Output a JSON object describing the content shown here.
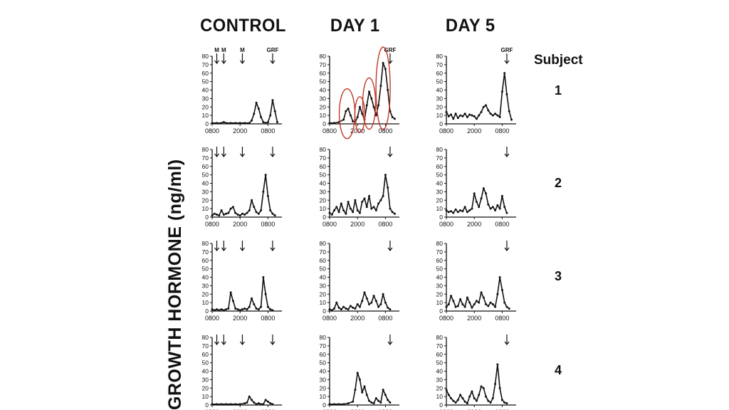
{
  "columns": [
    "CONTROL",
    "DAY 1",
    "DAY 5"
  ],
  "subject_header": "Subject",
  "subjects": [
    "1",
    "2",
    "3",
    "4"
  ],
  "ylabel": "GROWTH HORMONE (ng/ml)",
  "chart_data": {
    "type": "line",
    "title": "",
    "ylabel": "GROWTH HORMONE (ng/ml)",
    "ylim": [
      0,
      80
    ],
    "yticks": [
      0,
      10,
      20,
      30,
      40,
      50,
      60,
      70,
      80
    ],
    "xticks": [
      "0800",
      "2000",
      "0800"
    ],
    "x_unit": "hours from 0800",
    "xlim": [
      0,
      30
    ],
    "arrow_labels": {
      "control": [
        "M",
        "M",
        "M",
        "GRF"
      ],
      "day1": [
        "GRF"
      ],
      "day5": [
        "GRF"
      ]
    },
    "panels": [
      {
        "subject": "1",
        "column": "CONTROL",
        "x": [
          0,
          2,
          4,
          5,
          6,
          8,
          10,
          12,
          14,
          16,
          17,
          18,
          19,
          20,
          21,
          22,
          23,
          24,
          25,
          26,
          27,
          28
        ],
        "y": [
          1,
          1,
          1,
          2,
          1,
          1,
          1,
          1,
          1,
          1,
          4,
          12,
          25,
          18,
          8,
          2,
          1,
          2,
          10,
          28,
          15,
          2
        ]
      },
      {
        "subject": "1",
        "column": "DAY 1",
        "x": [
          0,
          2,
          4,
          6,
          7,
          8,
          9,
          10,
          11,
          12,
          13,
          14,
          15,
          16,
          17,
          18,
          19,
          20,
          21,
          22,
          23,
          24,
          25,
          26,
          27,
          28
        ],
        "y": [
          1,
          1,
          2,
          5,
          15,
          18,
          10,
          3,
          2,
          8,
          20,
          12,
          5,
          22,
          38,
          30,
          20,
          10,
          22,
          45,
          72,
          65,
          40,
          15,
          8,
          6
        ]
      },
      {
        "subject": "1",
        "column": "DAY 5",
        "x": [
          0,
          1,
          2,
          3,
          4,
          5,
          6,
          7,
          8,
          9,
          10,
          11,
          12,
          13,
          14,
          15,
          16,
          17,
          18,
          19,
          20,
          21,
          22,
          23,
          24,
          25,
          26,
          27,
          28
        ],
        "y": [
          14,
          9,
          11,
          6,
          12,
          7,
          10,
          9,
          12,
          8,
          11,
          10,
          9,
          6,
          10,
          14,
          20,
          22,
          16,
          12,
          10,
          12,
          10,
          8,
          38,
          60,
          35,
          15,
          5
        ]
      },
      {
        "subject": "2",
        "column": "CONTROL",
        "x": [
          0,
          1,
          2,
          3,
          4,
          5,
          6,
          7,
          8,
          9,
          10,
          11,
          12,
          13,
          14,
          15,
          16,
          17,
          18,
          19,
          20,
          21,
          22,
          23,
          24,
          25,
          26,
          27
        ],
        "y": [
          2,
          4,
          3,
          2,
          8,
          3,
          4,
          5,
          10,
          12,
          5,
          3,
          2,
          4,
          3,
          5,
          8,
          20,
          12,
          6,
          4,
          8,
          30,
          50,
          25,
          8,
          4,
          2
        ]
      },
      {
        "subject": "2",
        "column": "DAY 1",
        "x": [
          0,
          1,
          2,
          3,
          4,
          5,
          6,
          7,
          8,
          9,
          10,
          11,
          12,
          13,
          14,
          15,
          16,
          17,
          18,
          19,
          20,
          21,
          22,
          23,
          24,
          25,
          26,
          27,
          28
        ],
        "y": [
          5,
          3,
          8,
          12,
          6,
          16,
          8,
          4,
          18,
          10,
          6,
          20,
          8,
          5,
          18,
          22,
          12,
          25,
          10,
          12,
          8,
          16,
          20,
          25,
          50,
          35,
          10,
          6,
          4
        ]
      },
      {
        "subject": "2",
        "column": "DAY 5",
        "x": [
          0,
          1,
          2,
          3,
          4,
          5,
          6,
          7,
          8,
          9,
          10,
          11,
          12,
          13,
          14,
          15,
          16,
          17,
          18,
          19,
          20,
          21,
          22,
          23,
          24,
          25,
          26
        ],
        "y": [
          8,
          6,
          7,
          5,
          9,
          6,
          8,
          7,
          12,
          6,
          8,
          10,
          28,
          18,
          12,
          22,
          34,
          28,
          15,
          10,
          12,
          8,
          14,
          10,
          25,
          12,
          5
        ]
      },
      {
        "subject": "3",
        "column": "CONTROL",
        "x": [
          0,
          1,
          2,
          3,
          4,
          5,
          6,
          7,
          8,
          9,
          10,
          11,
          12,
          13,
          14,
          15,
          16,
          17,
          18,
          19,
          20,
          21,
          22,
          23,
          24,
          25,
          26
        ],
        "y": [
          2,
          1,
          2,
          1,
          2,
          1,
          2,
          3,
          22,
          12,
          3,
          2,
          1,
          2,
          3,
          2,
          5,
          15,
          8,
          3,
          2,
          5,
          40,
          20,
          5,
          2,
          1
        ]
      },
      {
        "subject": "3",
        "column": "DAY 1",
        "x": [
          0,
          1,
          2,
          3,
          4,
          5,
          6,
          7,
          8,
          9,
          10,
          11,
          12,
          13,
          14,
          15,
          16,
          17,
          18,
          19,
          20,
          21,
          22,
          23,
          24,
          25,
          26
        ],
        "y": [
          2,
          1,
          3,
          10,
          4,
          2,
          5,
          3,
          2,
          6,
          4,
          3,
          8,
          5,
          12,
          22,
          15,
          8,
          10,
          18,
          12,
          5,
          8,
          20,
          10,
          4,
          2
        ]
      },
      {
        "subject": "3",
        "column": "DAY 5",
        "x": [
          0,
          1,
          2,
          3,
          4,
          5,
          6,
          7,
          8,
          9,
          10,
          11,
          12,
          13,
          14,
          15,
          16,
          17,
          18,
          19,
          20,
          21,
          22,
          23,
          24,
          25,
          26,
          27
        ],
        "y": [
          5,
          8,
          18,
          12,
          5,
          6,
          14,
          8,
          5,
          16,
          10,
          4,
          8,
          12,
          10,
          22,
          16,
          8,
          6,
          10,
          8,
          5,
          20,
          40,
          25,
          10,
          5,
          3
        ]
      },
      {
        "subject": "4",
        "column": "CONTROL",
        "x": [
          0,
          2,
          4,
          6,
          8,
          10,
          12,
          14,
          15,
          16,
          17,
          18,
          19,
          20,
          21,
          22,
          23,
          24,
          25,
          26
        ],
        "y": [
          1,
          1,
          1,
          1,
          1,
          1,
          1,
          2,
          3,
          10,
          6,
          3,
          1,
          2,
          1,
          1,
          6,
          4,
          2,
          1
        ]
      },
      {
        "subject": "4",
        "column": "DAY 1",
        "x": [
          0,
          2,
          4,
          6,
          8,
          10,
          11,
          12,
          13,
          14,
          15,
          16,
          17,
          18,
          19,
          20,
          21,
          22,
          23,
          24,
          25,
          26
        ],
        "y": [
          1,
          1,
          1,
          1,
          2,
          4,
          18,
          38,
          30,
          15,
          22,
          12,
          5,
          3,
          2,
          8,
          5,
          3,
          18,
          12,
          6,
          3
        ]
      },
      {
        "subject": "4",
        "column": "DAY 5",
        "x": [
          0,
          1,
          2,
          3,
          4,
          5,
          6,
          7,
          8,
          9,
          10,
          11,
          12,
          13,
          14,
          15,
          16,
          17,
          18,
          19,
          20,
          21,
          22,
          23,
          24,
          25,
          26
        ],
        "y": [
          18,
          12,
          8,
          5,
          3,
          6,
          12,
          8,
          4,
          2,
          10,
          16,
          8,
          5,
          12,
          22,
          20,
          10,
          5,
          3,
          8,
          25,
          48,
          20,
          6,
          3,
          2
        ]
      }
    ]
  }
}
